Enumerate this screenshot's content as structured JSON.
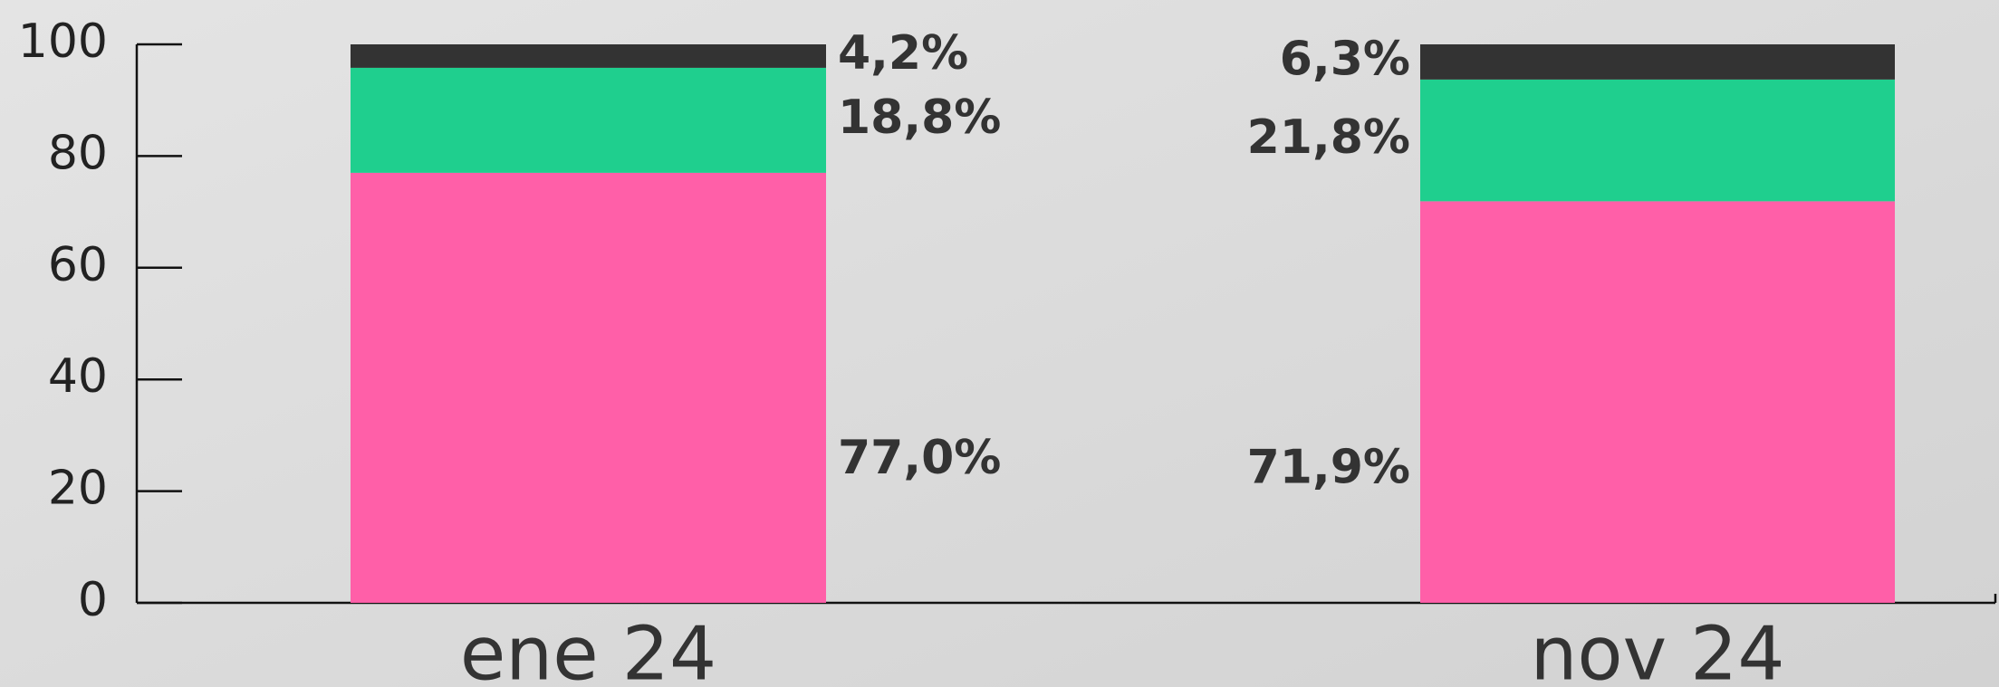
{
  "chart_data": {
    "type": "bar",
    "stacked": true,
    "categories": [
      "ene 24",
      "nov 24"
    ],
    "series": [
      {
        "color": "#ff5fa8",
        "values": [
          77.0,
          71.9
        ],
        "value_labels": [
          "77,0%",
          "71,9%"
        ]
      },
      {
        "color": "#1fcf8e",
        "values": [
          18.8,
          21.8
        ],
        "value_labels": [
          "18,8%",
          "21,8%"
        ]
      },
      {
        "color": "#333333",
        "values": [
          4.2,
          6.3
        ],
        "value_labels": [
          "4,2%",
          "6,3%"
        ]
      }
    ],
    "ylim": [
      0,
      100
    ],
    "yticks": [
      0,
      20,
      40,
      60,
      80,
      100
    ]
  }
}
